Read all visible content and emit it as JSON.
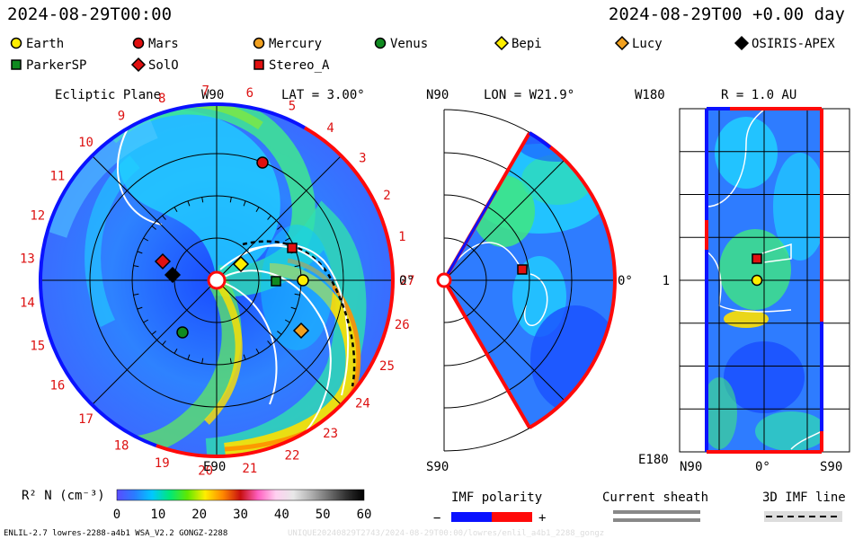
{
  "header": {
    "timestamp_left": "2024-08-29T00:00",
    "timestamp_right": "2024-08-29T00 +0.00 day"
  },
  "legend": {
    "bodies": [
      {
        "label": "Earth",
        "shape": "circle",
        "color": "#ffee00"
      },
      {
        "label": "Mars",
        "shape": "circle",
        "color": "#e01010"
      },
      {
        "label": "Mercury",
        "shape": "circle",
        "color": "#f0a020"
      },
      {
        "label": "Venus",
        "shape": "circle",
        "color": "#108a20"
      },
      {
        "label": "Bepi",
        "shape": "diamond",
        "color": "#ffee00"
      },
      {
        "label": "Lucy",
        "shape": "diamond",
        "color": "#f0a020"
      },
      {
        "label": "OSIRIS-APEX",
        "shape": "diamond",
        "color": "#000000"
      },
      {
        "label": "ParkerSP",
        "shape": "square",
        "color": "#108a20"
      },
      {
        "label": "SolO",
        "shape": "diamond",
        "color": "#e01010"
      },
      {
        "label": "Stereo_A",
        "shape": "square",
        "color": "#e01010"
      }
    ]
  },
  "panels": {
    "ecliptic": {
      "title": "Ecliptic Plane",
      "top_label": "W90",
      "bottom_label": "E90",
      "right_label": "0°",
      "lat_label": "LAT = 3.00°",
      "hour_labels": [
        "19",
        "20",
        "21",
        "22",
        "23",
        "24",
        "25",
        "26",
        "27",
        "1",
        "2",
        "3",
        "4",
        "5",
        "6",
        "7",
        "8",
        "9",
        "10",
        "11",
        "12",
        "13",
        "14",
        "15",
        "16",
        "17",
        "18"
      ]
    },
    "meridional": {
      "top_label": "N90",
      "bottom_label": "S90",
      "right_label": "0°",
      "lon_label": "LON = W21.9°"
    },
    "radial": {
      "title": "R = 1.0 AU",
      "top_left_label": "W180",
      "bottom_left_label": "E180",
      "mid_left_label": "1",
      "bottom_axis_labels": [
        "N90",
        "0°",
        "S90"
      ]
    }
  },
  "colorbar": {
    "label": "R² N (cm⁻³)",
    "ticks": [
      "0",
      "10",
      "20",
      "30",
      "40",
      "50",
      "60"
    ],
    "stops": [
      "#5a4cff",
      "#2a7cff",
      "#00c8ff",
      "#00e878",
      "#60e800",
      "#ffee00",
      "#ff8800",
      "#c81010",
      "#ff60c0",
      "#ffd0f0",
      "#e8e8e8",
      "#b0b0b0",
      "#707070",
      "#303030",
      "#000000"
    ]
  },
  "imf_polarity": {
    "title": "IMF polarity",
    "minus": "−",
    "plus": "+",
    "colors": [
      "#0a12ff",
      "#ff0a0a"
    ]
  },
  "current_sheath": {
    "title": "Current sheath"
  },
  "imf_line": {
    "title": "3D IMF line"
  },
  "footer": {
    "left": "ENLIL-2.7 lowres-2288-a4b1 WSA_V2.2 GONGZ-2288",
    "right": "UNIQUE20240829T2743/2024-08-29T00:00/lowres/enlil_a4b1_2288_gongz"
  }
}
